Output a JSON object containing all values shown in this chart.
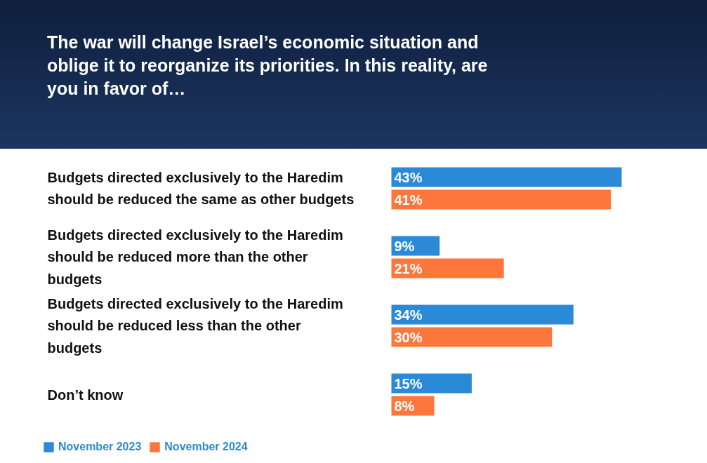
{
  "chart_data": {
    "type": "bar",
    "orientation": "horizontal",
    "title": "The war will change Israel’s economic situation and oblige it to reorganize its priorities. In this reality, are you in favor of…",
    "categories": [
      "Budgets directed exclusively to the Haredim should be reduced the same as other budgets",
      "Budgets directed exclusively to the Haredim should be reduced more than the other budgets",
      "Budgets directed exclusively to the Haredim should be reduced less than the other budgets",
      "Don’t know"
    ],
    "series": [
      {
        "name": "November 2023",
        "color": "#2b8ad8",
        "values": [
          43,
          9,
          34,
          15
        ],
        "value_labels": [
          "43%",
          "9%",
          "34%",
          "15%"
        ]
      },
      {
        "name": "November 2024",
        "color": "#fd773d",
        "values": [
          41,
          21,
          30,
          8
        ],
        "value_labels": [
          "41%",
          "21%",
          "30%",
          "8%"
        ]
      }
    ],
    "xlim": [
      0,
      59
    ],
    "grid": false,
    "legend": "bottom left"
  }
}
